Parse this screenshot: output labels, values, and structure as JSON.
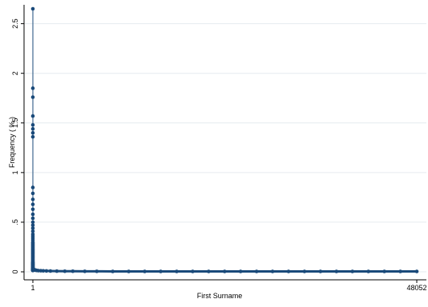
{
  "chart_data": {
    "type": "scatter",
    "title": "",
    "xlabel": "First Surname",
    "ylabel": "Frequency ( % )",
    "x_ticks": [
      "1",
      "48052"
    ],
    "y_ticks": [
      "0",
      ".5",
      "1",
      "1.5",
      "2",
      "2.5"
    ],
    "xlim": [
      1,
      48052
    ],
    "ylim": [
      0,
      2.65
    ],
    "grid": true,
    "legend": "none",
    "marker_color": "#1a4a7a",
    "line_color": "#1a4a7a",
    "series": [
      {
        "x": [
          1,
          1,
          1,
          1,
          1,
          1,
          1,
          1,
          1,
          1,
          1,
          1,
          1,
          1,
          1,
          1,
          1,
          1,
          1,
          1,
          1,
          1,
          1,
          1,
          1,
          1,
          1,
          1,
          1,
          1,
          1,
          1,
          1,
          1,
          1,
          1,
          1,
          1,
          1,
          1,
          1,
          1,
          1,
          1,
          1,
          1,
          1,
          1,
          1,
          1,
          1,
          1,
          1,
          1,
          1,
          1,
          1,
          1,
          1,
          1,
          1,
          1,
          1,
          1,
          1,
          1,
          1,
          1
        ],
        "y": [
          2.65,
          1.85,
          1.76,
          1.57,
          1.48,
          1.44,
          1.4,
          1.36,
          0.85,
          0.79,
          0.73,
          0.68,
          0.63,
          0.58,
          0.54,
          0.5,
          0.47,
          0.44,
          0.41,
          0.38,
          0.36,
          0.34,
          0.32,
          0.3,
          0.29,
          0.28,
          0.27,
          0.26,
          0.25,
          0.24,
          0.23,
          0.22,
          0.21,
          0.2,
          0.19,
          0.18,
          0.17,
          0.16,
          0.15,
          0.14,
          0.13,
          0.12,
          0.11,
          0.1,
          0.095,
          0.09,
          0.085,
          0.08,
          0.075,
          0.07,
          0.065,
          0.06,
          0.055,
          0.05,
          0.045,
          0.04,
          0.035,
          0.03,
          0.028,
          0.026,
          0.024,
          0.022,
          0.02,
          0.018,
          0.016,
          0.015,
          0.014,
          0.013
        ]
      },
      {
        "x": [
          50,
          100,
          150,
          200,
          300,
          400,
          500,
          700,
          1000,
          1300,
          1700,
          2200,
          3000,
          4000,
          5000,
          6500,
          8000,
          10000,
          12000,
          14000,
          16000,
          18000,
          20000,
          22000,
          24000,
          26000,
          28000,
          30000,
          32000,
          34000,
          36000,
          38000,
          40000,
          42000,
          44000,
          46000,
          48052
        ],
        "y": [
          0.03,
          0.025,
          0.022,
          0.02,
          0.018,
          0.016,
          0.014,
          0.012,
          0.011,
          0.01,
          0.009,
          0.008,
          0.007,
          0.006,
          0.006,
          0.005,
          0.005,
          0.004,
          0.004,
          0.004,
          0.004,
          0.004,
          0.004,
          0.004,
          0.004,
          0.004,
          0.004,
          0.004,
          0.004,
          0.004,
          0.004,
          0.004,
          0.004,
          0.004,
          0.004,
          0.004,
          0.004
        ]
      }
    ]
  }
}
